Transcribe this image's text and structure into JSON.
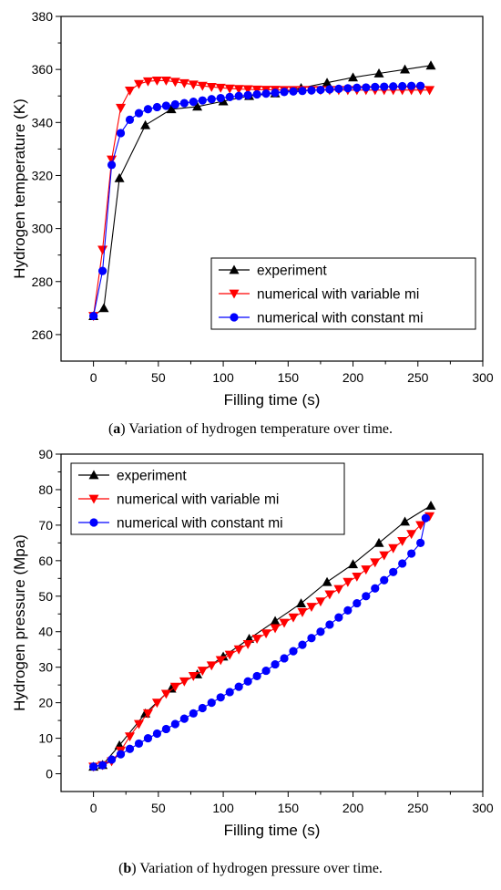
{
  "chart_data": [
    {
      "type": "line",
      "caption_letter": "a",
      "caption_text": "Variation of hydrogen temperature over time.",
      "xlabel": "Filling time (s)",
      "ylabel": "Hydrogen temperature (K)",
      "xlim": [
        -25,
        300
      ],
      "ylim": [
        250,
        380
      ],
      "xticks": [
        0,
        50,
        100,
        150,
        200,
        250,
        300
      ],
      "yticks": [
        260,
        280,
        300,
        320,
        340,
        360,
        380
      ],
      "legend_position": "bottom-right",
      "series": [
        {
          "name": "experiment",
          "color": "#000000",
          "marker": "triangle-up",
          "x": [
            0,
            8,
            20,
            40,
            60,
            80,
            100,
            120,
            140,
            160,
            180,
            200,
            220,
            240,
            260
          ],
          "y": [
            267,
            270,
            319,
            339,
            345,
            346,
            348,
            350,
            351,
            353,
            355,
            357,
            358.5,
            360,
            361.5
          ]
        },
        {
          "name": "numerical with variable mi",
          "color": "#ff0000",
          "marker": "triangle-down",
          "x": [
            0,
            7,
            14,
            21,
            28,
            35,
            42,
            49,
            56,
            63,
            70,
            77,
            84,
            91,
            98,
            105,
            112,
            119,
            126,
            133,
            140,
            147,
            154,
            161,
            168,
            175,
            182,
            189,
            196,
            203,
            210,
            217,
            224,
            231,
            238,
            245,
            252,
            259
          ],
          "y": [
            267,
            292,
            326,
            345.5,
            352,
            354.5,
            355.5,
            355.8,
            355.8,
            355.3,
            354.8,
            354.3,
            353.8,
            353.4,
            353.1,
            352.8,
            352.6,
            352.5,
            352.4,
            352.3,
            352.3,
            352.2,
            352.2,
            352.2,
            352.2,
            352.2,
            352.2,
            352.2,
            352.2,
            352.2,
            352.2,
            352.2,
            352.2,
            352.2,
            352.2,
            352.2,
            352.2,
            352.2
          ]
        },
        {
          "name": "numerical with constant mi",
          "color": "#0000ff",
          "marker": "circle",
          "x": [
            0,
            7,
            14,
            21,
            28,
            35,
            42,
            49,
            56,
            63,
            70,
            77,
            84,
            91,
            98,
            105,
            112,
            119,
            126,
            133,
            140,
            147,
            154,
            161,
            168,
            175,
            182,
            189,
            196,
            203,
            210,
            217,
            224,
            231,
            238,
            245,
            252
          ],
          "y": [
            267,
            284,
            324,
            336,
            341,
            343.5,
            345,
            345.8,
            346.3,
            346.8,
            347.3,
            347.8,
            348.3,
            348.8,
            349.2,
            349.6,
            350,
            350.3,
            350.6,
            350.9,
            351.2,
            351.5,
            351.7,
            351.9,
            352.1,
            352.3,
            352.5,
            352.7,
            352.9,
            353.1,
            353.2,
            353.4,
            353.5,
            353.6,
            353.7,
            353.8,
            353.8
          ]
        }
      ]
    },
    {
      "type": "line",
      "caption_letter": "b",
      "caption_text": "Variation of hydrogen pressure over time.",
      "xlabel": "Filling time (s)",
      "ylabel": "Hydrogen pressure (Mpa)",
      "xlim": [
        -25,
        300
      ],
      "ylim": [
        -5,
        90
      ],
      "xticks": [
        0,
        50,
        100,
        150,
        200,
        250,
        300
      ],
      "yticks": [
        0,
        10,
        20,
        30,
        40,
        50,
        60,
        70,
        80,
        90
      ],
      "legend_position": "top-left",
      "series": [
        {
          "name": "experiment",
          "color": "#000000",
          "marker": "triangle-up",
          "x": [
            0,
            7,
            20,
            40,
            60,
            80,
            100,
            120,
            140,
            160,
            180,
            200,
            220,
            240,
            260
          ],
          "y": [
            2,
            2.5,
            8,
            17,
            24,
            28,
            33,
            38,
            43,
            48,
            54,
            59,
            65,
            71,
            75.5
          ]
        },
        {
          "name": "numerical with variable mi",
          "color": "#ff0000",
          "marker": "triangle-down",
          "x": [
            0,
            7,
            14,
            21,
            28,
            35,
            42,
            49,
            56,
            63,
            70,
            77,
            84,
            91,
            98,
            105,
            112,
            119,
            126,
            133,
            140,
            147,
            154,
            161,
            168,
            175,
            182,
            189,
            196,
            203,
            210,
            217,
            224,
            231,
            238,
            245,
            252,
            259
          ],
          "y": [
            2,
            2.4,
            3.5,
            6.5,
            10.5,
            14,
            17,
            20,
            22.5,
            24.5,
            26,
            27.5,
            29,
            30.5,
            32,
            33.5,
            35,
            36.5,
            38,
            39.5,
            41,
            42.5,
            44,
            45.5,
            47,
            48.5,
            50.5,
            52,
            54,
            55.5,
            57.5,
            59.5,
            61.5,
            63.5,
            65.5,
            67.5,
            70,
            72.5
          ]
        },
        {
          "name": "numerical with constant mi",
          "color": "#0000ff",
          "marker": "circle",
          "x": [
            0,
            7,
            14,
            21,
            28,
            35,
            42,
            49,
            56,
            63,
            70,
            77,
            84,
            91,
            98,
            105,
            112,
            119,
            126,
            133,
            140,
            147,
            154,
            161,
            168,
            175,
            182,
            189,
            196,
            203,
            210,
            217,
            224,
            231,
            238,
            245,
            252,
            256
          ],
          "y": [
            2,
            2.4,
            4,
            5.5,
            7,
            8.5,
            10,
            11.3,
            12.6,
            14,
            15.5,
            17,
            18.5,
            20,
            21.5,
            23,
            24.5,
            26,
            27.5,
            29,
            30.8,
            32.5,
            34.5,
            36.3,
            38.2,
            40,
            42,
            44,
            46,
            48,
            50,
            52.2,
            54.5,
            56.8,
            59.2,
            62,
            65,
            72
          ]
        }
      ]
    }
  ]
}
